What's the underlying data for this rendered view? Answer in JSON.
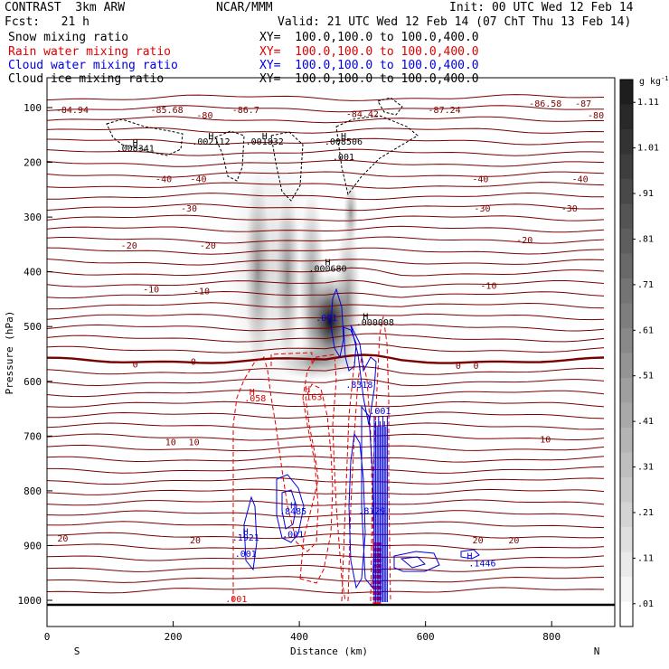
{
  "header": {
    "title_left": "CONTRAST  3km ARW",
    "fcst": "Fcst:   21 h",
    "center": "NCAR/MMM",
    "init": "Init: 00 UTC Wed 12 Feb 14",
    "valid": "Valid: 21 UTC Wed 12 Feb 14 (07 ChT Thu 13 Feb 14)"
  },
  "legend": [
    {
      "label": "Snow mixing ratio",
      "xy": "",
      "color": "#000000"
    },
    {
      "label": "Rain water mixing ratio",
      "xy": "XY=  100.0,100.0 to 100.0,400.0",
      "color": "#e00000"
    },
    {
      "label": "Cloud water mixing ratio",
      "xy": "XY=  100.0,100.0 to 100.0,400.0",
      "color": "#0000e0"
    },
    {
      "label": "Cloud ice mixing ratio",
      "xy": "XY=  100.0,100.0 to 100.0,400.0",
      "color": "#000000"
    }
  ],
  "snow_xy": "XY=  100.0,100.0 to 100.0,400.0",
  "chart_data": {
    "type": "heatmap",
    "xlabel": "Distance (km)",
    "ylabel": "Pressure (hPa)",
    "xlim": [
      0,
      900
    ],
    "ylim": [
      1040,
      50
    ],
    "x_ticks": [
      "0",
      "200",
      "400",
      "600",
      "800"
    ],
    "x_tick_values": [
      0,
      200,
      400,
      600,
      800
    ],
    "y_ticks": [
      "100",
      "200",
      "300",
      "400",
      "500",
      "600",
      "700",
      "800",
      "900",
      "1000"
    ],
    "y_tick_values": [
      100,
      200,
      300,
      400,
      500,
      600,
      700,
      800,
      900,
      1000
    ],
    "endpoints": {
      "left": "S",
      "right": "N"
    },
    "colorbar": {
      "unit": "g kg",
      "unit_exp": "-1",
      "labels": [
        "1.11",
        "1.01",
        ".91",
        ".81",
        ".71",
        ".61",
        ".51",
        ".41",
        ".31",
        ".21",
        ".11",
        ".01"
      ],
      "values": [
        1.11,
        1.01,
        0.91,
        0.81,
        0.71,
        0.61,
        0.51,
        0.41,
        0.31,
        0.21,
        0.11,
        0.01
      ]
    },
    "temperature_labels": [
      {
        "text": "-84.94",
        "x": 40,
        "p": 110
      },
      {
        "text": "-85.68",
        "x": 190,
        "p": 110
      },
      {
        "text": "-86.7",
        "x": 315,
        "p": 110
      },
      {
        "text": "-84.42",
        "x": 500,
        "p": 117
      },
      {
        "text": "-87.24",
        "x": 630,
        "p": 110
      },
      {
        "text": "-86.58",
        "x": 790,
        "p": 98
      },
      {
        "text": "-87",
        "x": 850,
        "p": 98
      },
      {
        "text": "-80",
        "x": 250,
        "p": 120
      },
      {
        "text": "-80",
        "x": 870,
        "p": 120
      },
      {
        "text": "-40",
        "x": 185,
        "p": 236
      },
      {
        "text": "-40",
        "x": 240,
        "p": 236
      },
      {
        "text": "-40",
        "x": 687,
        "p": 236
      },
      {
        "text": "-40",
        "x": 845,
        "p": 236
      },
      {
        "text": "-30",
        "x": 225,
        "p": 290
      },
      {
        "text": "-30",
        "x": 690,
        "p": 290
      },
      {
        "text": "-30",
        "x": 828,
        "p": 290
      },
      {
        "text": "-20",
        "x": 130,
        "p": 358
      },
      {
        "text": "-20",
        "x": 255,
        "p": 358
      },
      {
        "text": "-20",
        "x": 757,
        "p": 348
      },
      {
        "text": "-10",
        "x": 165,
        "p": 438
      },
      {
        "text": "-10",
        "x": 245,
        "p": 441
      },
      {
        "text": "-10",
        "x": 700,
        "p": 431
      },
      {
        "text": "0",
        "x": 140,
        "p": 575
      },
      {
        "text": "0",
        "x": 232,
        "p": 570
      },
      {
        "text": "0",
        "x": 652,
        "p": 577
      },
      {
        "text": "0",
        "x": 680,
        "p": 577
      },
      {
        "text": "10",
        "x": 196,
        "p": 717
      },
      {
        "text": "10",
        "x": 233,
        "p": 717
      },
      {
        "text": "10",
        "x": 790,
        "p": 712
      },
      {
        "text": "20",
        "x": 25,
        "p": 893
      },
      {
        "text": "20",
        "x": 235,
        "p": 896
      },
      {
        "text": "20",
        "x": 683,
        "p": 896
      },
      {
        "text": "20",
        "x": 740,
        "p": 896
      }
    ],
    "snow_max_labels": [
      {
        "text": "H",
        "x": 140,
        "p": 170
      },
      {
        "text": ".008341",
        "x": 140,
        "p": 180
      },
      {
        "text": "H",
        "x": 260,
        "p": 158
      },
      {
        "text": ".002112",
        "x": 260,
        "p": 168
      },
      {
        "text": "H",
        "x": 345,
        "p": 158
      },
      {
        "text": ".001832",
        "x": 345,
        "p": 168
      },
      {
        "text": "H",
        "x": 470,
        "p": 158
      },
      {
        "text": ".008506",
        "x": 470,
        "p": 168
      },
      {
        "text": ".001",
        "x": 470,
        "p": 196
      },
      {
        "text": "H",
        "x": 445,
        "p": 388
      },
      {
        "text": ".000680",
        "x": 445,
        "p": 400
      },
      {
        "text": "H",
        "x": 505,
        "p": 487
      },
      {
        "text": ".000008",
        "x": 520,
        "p": 498
      }
    ],
    "rain_labels": [
      {
        "text": "H",
        "x": 325,
        "p": 625
      },
      {
        "text": ".058",
        "x": 330,
        "p": 637
      },
      {
        "text": "H",
        "x": 413,
        "p": 620
      },
      {
        "text": ".163",
        "x": 419,
        "p": 634
      },
      {
        "text": ".001",
        "x": 300,
        "p": 1003
      }
    ],
    "cloud_water_labels": [
      {
        "text": ".001",
        "x": 443,
        "p": 490
      },
      {
        "text": ".8318",
        "x": 495,
        "p": 612
      },
      {
        "text": ".001",
        "x": 528,
        "p": 660
      },
      {
        "text": "H",
        "x": 390,
        "p": 832
      },
      {
        "text": ".8485",
        "x": 390,
        "p": 843
      },
      {
        "text": ".8129",
        "x": 515,
        "p": 842
      },
      {
        "text": "H",
        "x": 315,
        "p": 880
      },
      {
        "text": ".1921",
        "x": 315,
        "p": 891
      },
      {
        "text": ".001",
        "x": 390,
        "p": 885
      },
      {
        "text": ".001",
        "x": 315,
        "p": 921
      },
      {
        "text": "H",
        "x": 670,
        "p": 925
      },
      {
        "text": ".1446",
        "x": 690,
        "p": 938
      }
    ]
  }
}
